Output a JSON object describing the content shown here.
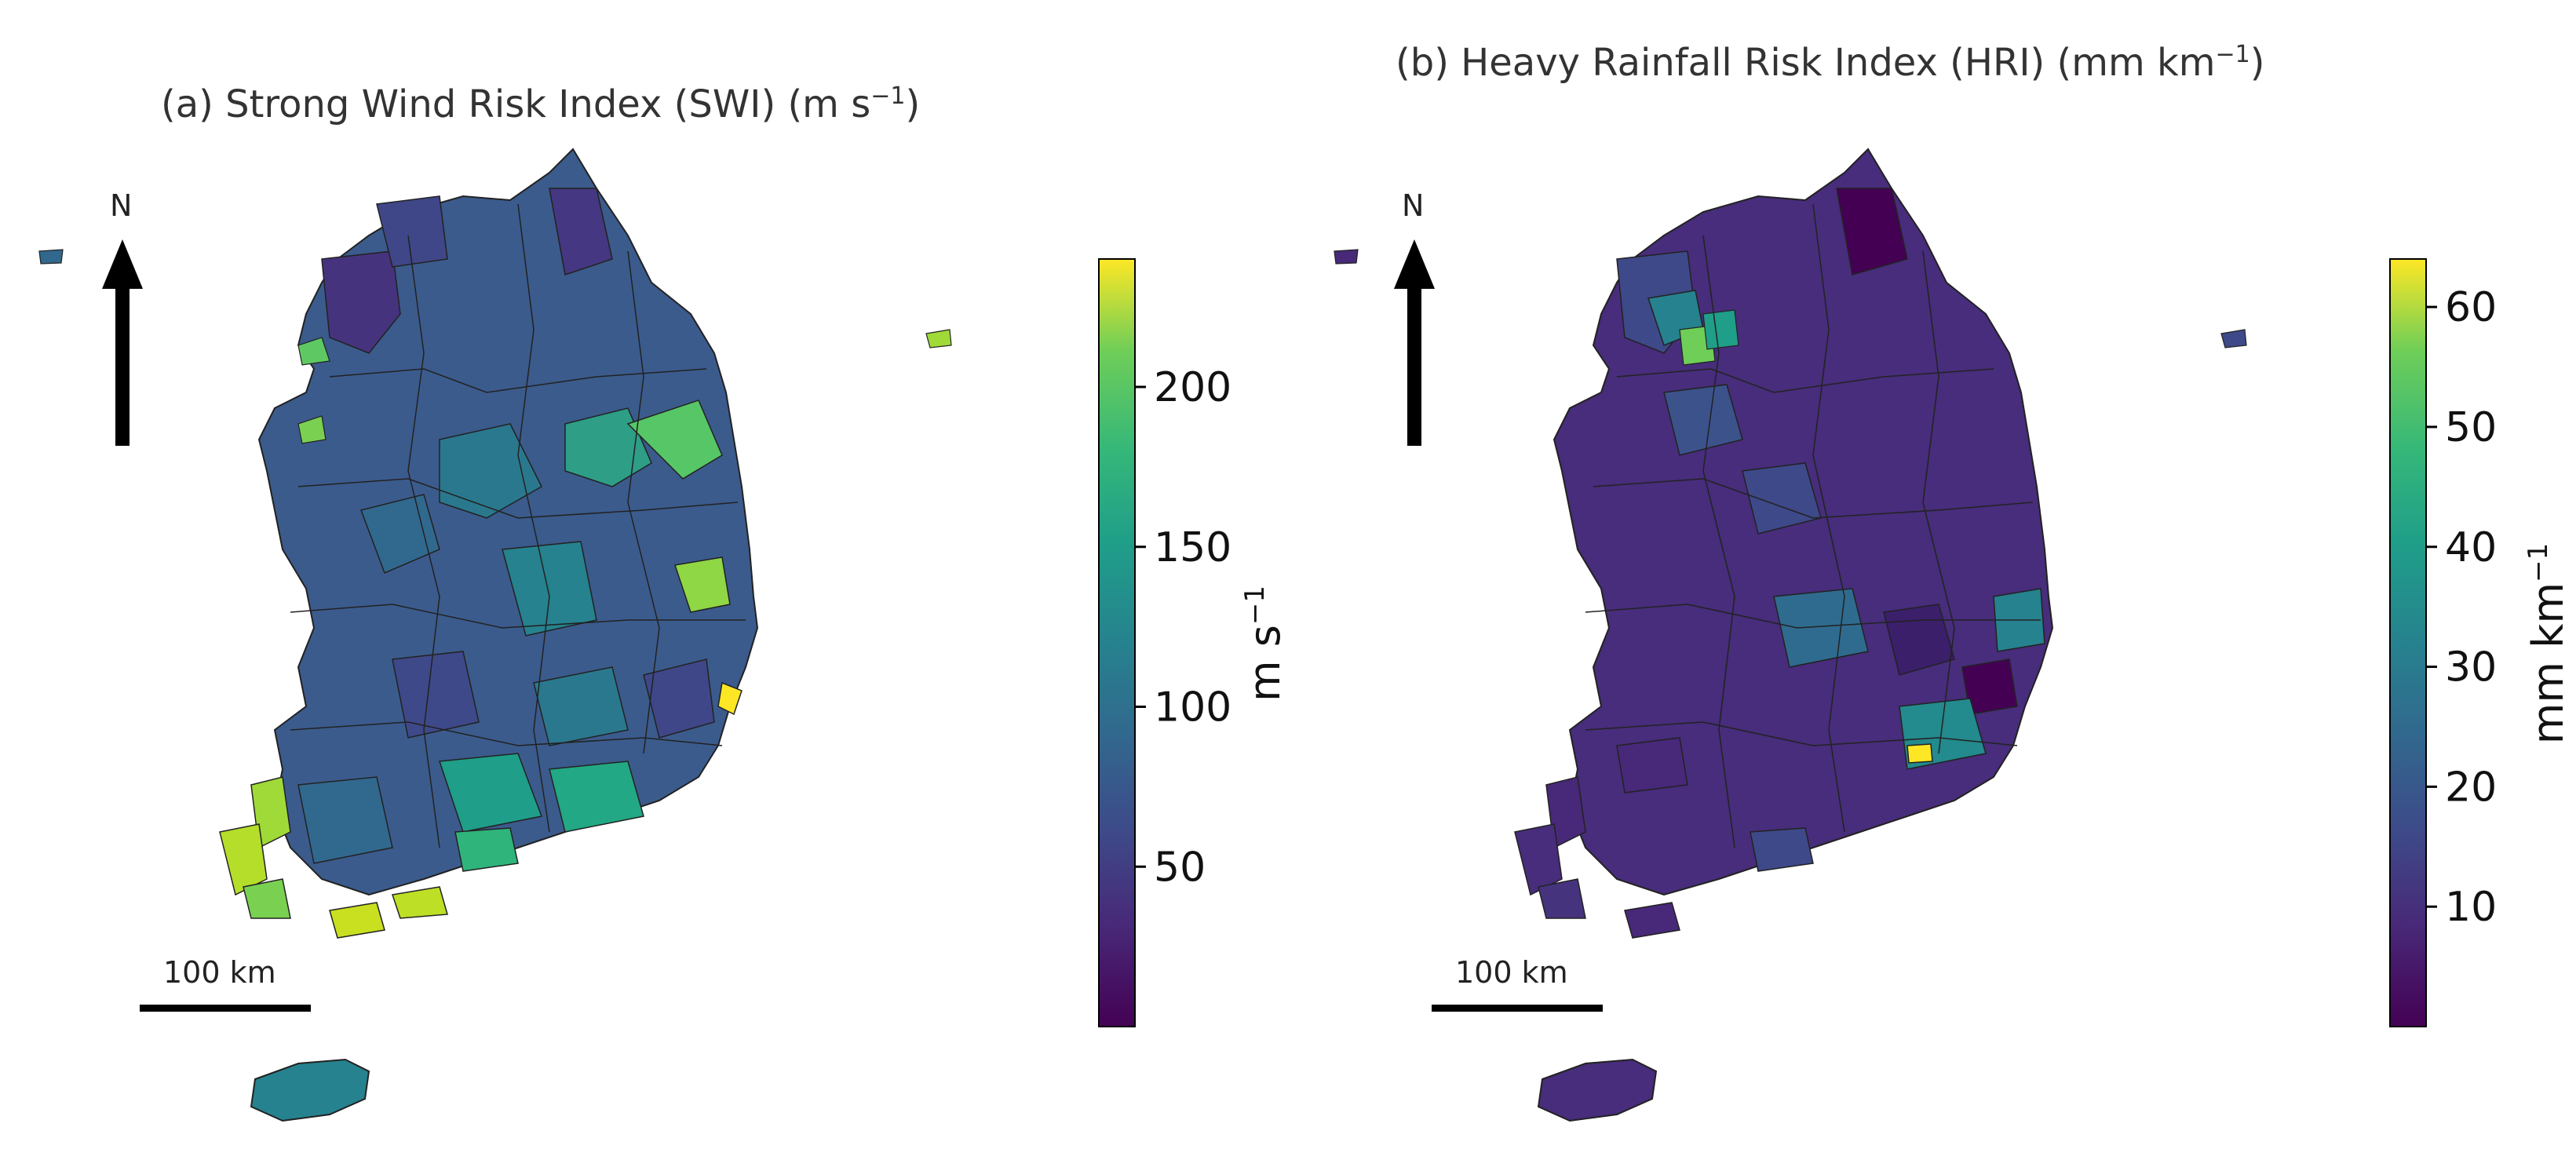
{
  "panels": [
    {
      "id": "a",
      "title": "(a) Strong Wind Risk Index (SWI) (m s",
      "title_sup": "−1",
      "title_close": ")",
      "north_label": "N",
      "scale_label": "100 km",
      "colorbar": {
        "label": "m s",
        "label_sup": "−1",
        "ticks": [
          "50",
          "100",
          "150",
          "200"
        ],
        "tick_values": [
          50,
          100,
          150,
          200
        ],
        "vmin": 0,
        "vmax": 240
      },
      "colors": {
        "land_base": "#3b5b8c",
        "mid": "#2a788e",
        "high": "#7ad151",
        "max": "#d8e219"
      }
    },
    {
      "id": "b",
      "title": "(b) Heavy Rainfall Risk Index (HRI) (mm km",
      "title_sup": "−1",
      "title_close": ")",
      "north_label": "N",
      "scale_label": "100 km",
      "colorbar": {
        "label": "mm km",
        "label_sup": "−1",
        "ticks": [
          "10",
          "20",
          "30",
          "40",
          "50",
          "60"
        ],
        "tick_values": [
          10,
          20,
          30,
          40,
          50,
          60
        ],
        "vmin": 0,
        "vmax": 64
      },
      "colors": {
        "land_base": "#3a1f6b",
        "mid": "#2f4f8a",
        "high": "#21918c",
        "max": "#fde725"
      }
    }
  ],
  "colormap": "viridis"
}
